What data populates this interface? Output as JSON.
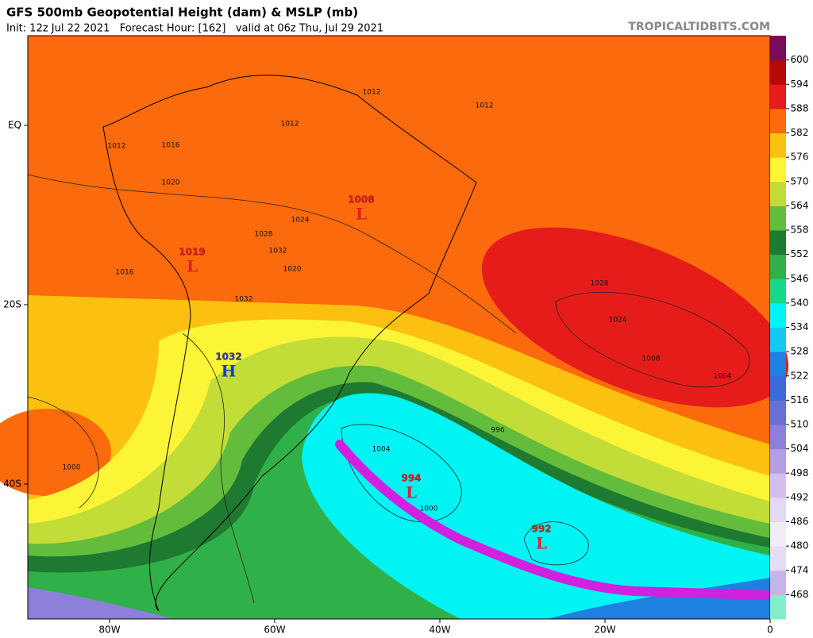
{
  "header": {
    "title": "GFS 500mb Geopotential Height (dam) & MSLP (mb)",
    "subtitle": "Init: 12z Jul 22 2021   Forecast Hour: [162]   valid at 06z Thu, Jul 29 2021",
    "site": "TROPICALTIDBITS.COM"
  },
  "colorbar": {
    "values": [
      468,
      474,
      480,
      486,
      492,
      498,
      504,
      510,
      516,
      522,
      528,
      534,
      540,
      546,
      552,
      558,
      564,
      570,
      576,
      582,
      588,
      594,
      600
    ],
    "colors": [
      "#80f0c8",
      "#c8b4e8",
      "#e6dcf4",
      "#f0ecf8",
      "#e4d8f2",
      "#d2c0ea",
      "#b49ee0",
      "#8c80d8",
      "#6870d4",
      "#3c6ad8",
      "#1e80e0",
      "#18c8f0",
      "#00f4f4",
      "#18d88c",
      "#30b048",
      "#1e7a30",
      "#64bc3c",
      "#c2dc38",
      "#fcf436",
      "#fcc010",
      "#fb6a0c",
      "#e61c1a",
      "#b40a0a",
      "#7a0a5a"
    ]
  },
  "lat_ticks": [
    {
      "value": 0,
      "label": "EQ"
    },
    {
      "value": -20,
      "label": "20S"
    },
    {
      "value": -40,
      "label": "40S"
    }
  ],
  "lon_ticks": [
    {
      "value": -80,
      "label": "80W"
    },
    {
      "value": -60,
      "label": "60W"
    },
    {
      "value": -40,
      "label": "40W"
    },
    {
      "value": -20,
      "label": "20W"
    },
    {
      "value": 0,
      "label": "0"
    }
  ],
  "centers": [
    {
      "value": 1008,
      "letter": "L"
    },
    {
      "value": 1019,
      "letter": "L"
    },
    {
      "value": 1032,
      "letter": "H"
    },
    {
      "value": 994,
      "letter": "L"
    },
    {
      "value": 992,
      "letter": "L"
    }
  ],
  "isobar_labels": [
    1012,
    1012,
    1012,
    1012,
    1016,
    1020,
    1024,
    1028,
    1032,
    1016,
    1020,
    1032,
    1028,
    1024,
    1008,
    1004,
    1000,
    996,
    1004,
    1000
  ]
}
